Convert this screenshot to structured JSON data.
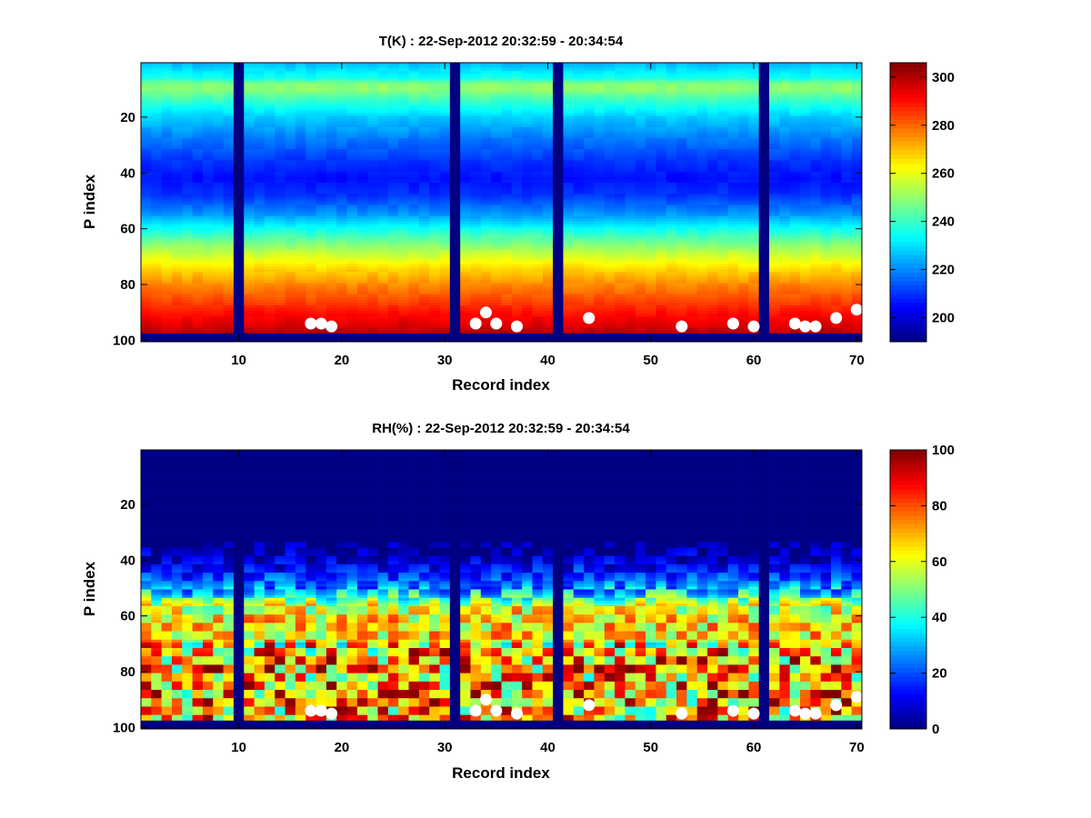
{
  "chart_data": [
    {
      "type": "heatmap",
      "title": "T(K) : 22-Sep-2012 20:32:59 - 20:34:54",
      "xlabel": "Record index",
      "ylabel": "P index",
      "xlim": [
        0.5,
        70.5
      ],
      "ylim": [
        0.5,
        100.5
      ],
      "y_reversed": true,
      "xticks": [
        10,
        20,
        30,
        40,
        50,
        60,
        70
      ],
      "yticks": [
        20,
        40,
        60,
        80,
        100
      ],
      "colorbar": {
        "clim": [
          190,
          306
        ],
        "ticks": [
          200,
          220,
          240,
          260,
          280,
          300
        ],
        "colormap": "jet"
      },
      "missing_records": [
        10,
        31,
        41,
        61
      ],
      "bottom_missing_from_p": 98,
      "profile_mean": [
        {
          "p": 1,
          "value": 226
        },
        {
          "p": 6,
          "value": 236
        },
        {
          "p": 8,
          "value": 248
        },
        {
          "p": 10,
          "value": 250
        },
        {
          "p": 14,
          "value": 240
        },
        {
          "p": 20,
          "value": 228
        },
        {
          "p": 28,
          "value": 218
        },
        {
          "p": 36,
          "value": 210
        },
        {
          "p": 42,
          "value": 206
        },
        {
          "p": 48,
          "value": 210
        },
        {
          "p": 55,
          "value": 222
        },
        {
          "p": 62,
          "value": 240
        },
        {
          "p": 68,
          "value": 254
        },
        {
          "p": 74,
          "value": 266
        },
        {
          "p": 80,
          "value": 276
        },
        {
          "p": 86,
          "value": 284
        },
        {
          "p": 91,
          "value": 291
        },
        {
          "p": 95,
          "value": 296
        },
        {
          "p": 97,
          "value": 299
        }
      ],
      "markers": [
        {
          "x": 17,
          "y": 94
        },
        {
          "x": 18,
          "y": 94
        },
        {
          "x": 19,
          "y": 95
        },
        {
          "x": 33,
          "y": 94
        },
        {
          "x": 34,
          "y": 90
        },
        {
          "x": 35,
          "y": 94
        },
        {
          "x": 37,
          "y": 95
        },
        {
          "x": 44,
          "y": 92
        },
        {
          "x": 53,
          "y": 95
        },
        {
          "x": 58,
          "y": 94
        },
        {
          "x": 60,
          "y": 95
        },
        {
          "x": 64,
          "y": 94
        },
        {
          "x": 65,
          "y": 95
        },
        {
          "x": 66,
          "y": 95
        },
        {
          "x": 68,
          "y": 92
        },
        {
          "x": 70,
          "y": 89
        }
      ]
    },
    {
      "type": "heatmap",
      "title": "RH(%) : 22-Sep-2012 20:32:59 - 20:34:54",
      "xlabel": "Record index",
      "ylabel": "P index",
      "xlim": [
        0.5,
        70.5
      ],
      "ylim": [
        0.5,
        100.5
      ],
      "y_reversed": true,
      "xticks": [
        10,
        20,
        30,
        40,
        50,
        60,
        70
      ],
      "yticks": [
        20,
        40,
        60,
        80,
        100
      ],
      "colorbar": {
        "clim": [
          0,
          100
        ],
        "ticks": [
          0,
          20,
          40,
          60,
          80,
          100
        ],
        "colormap": "jet"
      },
      "missing_records": [
        10,
        31,
        41,
        61
      ],
      "bottom_missing_from_p": 98,
      "profile_mean": [
        {
          "p": 1,
          "value": 0
        },
        {
          "p": 34,
          "value": 1
        },
        {
          "p": 40,
          "value": 8
        },
        {
          "p": 46,
          "value": 18
        },
        {
          "p": 52,
          "value": 35
        },
        {
          "p": 56,
          "value": 58
        },
        {
          "p": 62,
          "value": 66
        },
        {
          "p": 70,
          "value": 64
        },
        {
          "p": 76,
          "value": 74
        },
        {
          "p": 82,
          "value": 70
        },
        {
          "p": 88,
          "value": 72
        },
        {
          "p": 94,
          "value": 70
        },
        {
          "p": 97,
          "value": 68
        }
      ],
      "markers": [
        {
          "x": 17,
          "y": 94
        },
        {
          "x": 18,
          "y": 94
        },
        {
          "x": 19,
          "y": 95
        },
        {
          "x": 33,
          "y": 94
        },
        {
          "x": 34,
          "y": 90
        },
        {
          "x": 35,
          "y": 94
        },
        {
          "x": 37,
          "y": 95
        },
        {
          "x": 44,
          "y": 92
        },
        {
          "x": 53,
          "y": 95
        },
        {
          "x": 58,
          "y": 94
        },
        {
          "x": 60,
          "y": 95
        },
        {
          "x": 64,
          "y": 94
        },
        {
          "x": 65,
          "y": 95
        },
        {
          "x": 66,
          "y": 95
        },
        {
          "x": 68,
          "y": 92
        },
        {
          "x": 70,
          "y": 89
        }
      ]
    }
  ]
}
